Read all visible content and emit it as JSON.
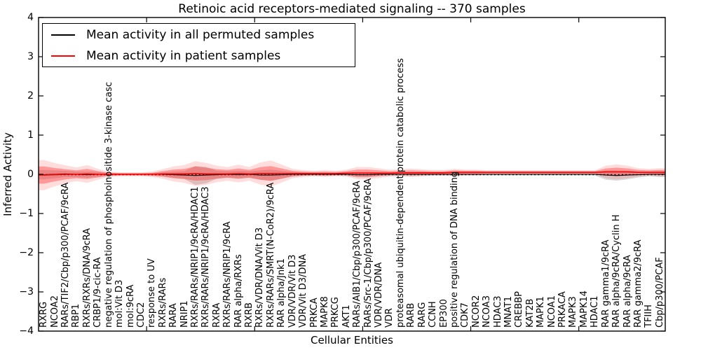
{
  "title": "Retinoic acid receptors-mediated signaling -- 370 samples",
  "axes": {
    "x_label": "Cellular Entities",
    "y_label": "Inferred Activity"
  },
  "legend": {
    "items": [
      {
        "label": "Mean activity in all permuted samples",
        "color": "#000000"
      },
      {
        "label": "Mean activity in patient samples",
        "color": "#ff0000"
      }
    ]
  },
  "colors": {
    "permuted_line": "#000000",
    "permuted_band": "#aaaaaa",
    "patient_line": "#ff0000",
    "patient_band": "#ff2a2a",
    "zero_line": "#000000"
  },
  "chart_data": {
    "type": "line",
    "title": "Retinoic acid receptors-mediated signaling -- 370 samples",
    "xlabel": "Cellular Entities",
    "ylabel": "Inferred Activity",
    "ylim": [
      -4,
      4
    ],
    "yticks": [
      -4,
      -3,
      -2,
      -1,
      0,
      1,
      2,
      3,
      4
    ],
    "xtick_units": [
      10,
      20,
      30,
      40,
      50
    ],
    "grid": false,
    "legend_position": "upper left",
    "zero_reference_line": 0,
    "categories": [
      "RXRG",
      "NCOA2",
      "RARs/TIF2/Cbp/p300/PCAF/9cRA",
      "RBP1",
      "RXRs/RXRs/DNA/9cRA",
      "CRBP1/9-cic-RA",
      "negative regulation of phosphoinositide 3-kinase casc",
      "mol:Vit D3",
      "mol:9cRA",
      "CDC2",
      "response to UV",
      "RXRs/RARs",
      "RARA",
      "NRIP1",
      "RXRs/RARs/NRIP1/9cRA/HDAC1",
      "RXRs/RARs/NRIP1/9cRA/HDAC3",
      "RXRA",
      "RXRs/RARs/NRIP1/9cRA",
      "RAR alpha/RXRs",
      "RXRB",
      "RXRs/VDR/DNA/Vit D3",
      "RXRs/RARs/SMRT(N-CoR2)/9cRA",
      "RAR alpha/Jnk1",
      "VDR/VDR/Vit D3",
      "VDR/Vit D3/DNA",
      "PRKCA",
      "MAPK8",
      "PRKCG",
      "AKT1",
      "RARs/AIB1/Cbp/p300/PCAF/9cRA",
      "RARs/Src-1/Cbp/p300/PCAF/9cRA",
      "VDR/VDR/DNA",
      "VDR",
      "proteasomal ubiquitin-dependent protein catabolic process",
      "RARB",
      "RARG",
      "CCNH",
      "EP300",
      "positive regulation of DNA binding",
      "CDK7",
      "NCOR2",
      "NCOA3",
      "HDAC3",
      "MNAT1",
      "CREBBP",
      "KAT2B",
      "MAPK1",
      "NCOA1",
      "PRKACA",
      "MAPK3",
      "MAPK14",
      "HDAC1",
      "RAR gamma1/9cRA",
      "RAR alpha/9cRA/Cyclin H",
      "RAR alpha/9cRA",
      "RAR gamma2/9cRA",
      "TFIIH",
      "Cbp/p300/PCAF"
    ],
    "series": [
      {
        "name": "Mean activity in all permuted samples",
        "values": [
          -0.01,
          0.0,
          0.01,
          0.0,
          -0.01,
          0.0,
          0.0,
          0.0,
          0.0,
          0.0,
          0.0,
          0.0,
          -0.01,
          -0.02,
          -0.03,
          -0.02,
          -0.01,
          0.0,
          -0.01,
          0.0,
          -0.02,
          -0.02,
          -0.01,
          0.0,
          0.0,
          0.0,
          0.0,
          0.0,
          0.0,
          -0.01,
          -0.01,
          0.0,
          0.0,
          0.0,
          0.0,
          0.0,
          0.0,
          0.0,
          0.0,
          0.0,
          0.0,
          0.0,
          0.0,
          0.0,
          0.0,
          0.0,
          0.0,
          0.0,
          0.0,
          0.0,
          0.0,
          0.0,
          -0.02,
          -0.03,
          -0.02,
          -0.01,
          0.0,
          0.0
        ],
        "std": [
          0.12,
          0.1,
          0.08,
          0.07,
          0.08,
          0.06,
          0.03,
          0.02,
          0.02,
          0.02,
          0.03,
          0.05,
          0.08,
          0.1,
          0.24,
          0.21,
          0.1,
          0.08,
          0.1,
          0.08,
          0.12,
          0.14,
          0.1,
          0.06,
          0.04,
          0.04,
          0.04,
          0.03,
          0.04,
          0.07,
          0.07,
          0.05,
          0.04,
          0.04,
          0.05,
          0.04,
          0.03,
          0.03,
          0.04,
          0.03,
          0.03,
          0.03,
          0.03,
          0.03,
          0.03,
          0.03,
          0.03,
          0.03,
          0.03,
          0.03,
          0.03,
          0.03,
          0.12,
          0.13,
          0.11,
          0.07,
          0.05,
          0.07
        ]
      },
      {
        "name": "Mean activity in patient samples",
        "values": [
          -0.02,
          -0.01,
          0.0,
          0.0,
          0.01,
          0.0,
          0.0,
          0.0,
          0.0,
          0.0,
          0.0,
          0.01,
          0.01,
          0.01,
          0.02,
          0.01,
          0.01,
          0.01,
          0.02,
          0.01,
          0.02,
          0.02,
          0.02,
          0.02,
          0.02,
          0.02,
          0.02,
          0.02,
          0.03,
          0.03,
          0.03,
          0.03,
          0.03,
          0.04,
          0.04,
          0.04,
          0.04,
          0.04,
          0.05,
          0.05,
          0.05,
          0.05,
          0.05,
          0.05,
          0.05,
          0.05,
          0.05,
          0.05,
          0.05,
          0.05,
          0.05,
          0.05,
          0.06,
          0.06,
          0.06,
          0.05,
          0.05,
          0.05
        ],
        "std": [
          0.22,
          0.17,
          0.13,
          0.1,
          0.13,
          0.08,
          0.04,
          0.03,
          0.03,
          0.03,
          0.04,
          0.07,
          0.11,
          0.13,
          0.18,
          0.16,
          0.12,
          0.1,
          0.13,
          0.1,
          0.16,
          0.19,
          0.13,
          0.07,
          0.05,
          0.04,
          0.05,
          0.04,
          0.05,
          0.09,
          0.09,
          0.07,
          0.05,
          0.05,
          0.06,
          0.05,
          0.04,
          0.04,
          0.05,
          0.04,
          0.04,
          0.03,
          0.03,
          0.03,
          0.03,
          0.03,
          0.03,
          0.03,
          0.03,
          0.03,
          0.03,
          0.03,
          0.09,
          0.11,
          0.09,
          0.06,
          0.05,
          0.06
        ]
      }
    ]
  }
}
